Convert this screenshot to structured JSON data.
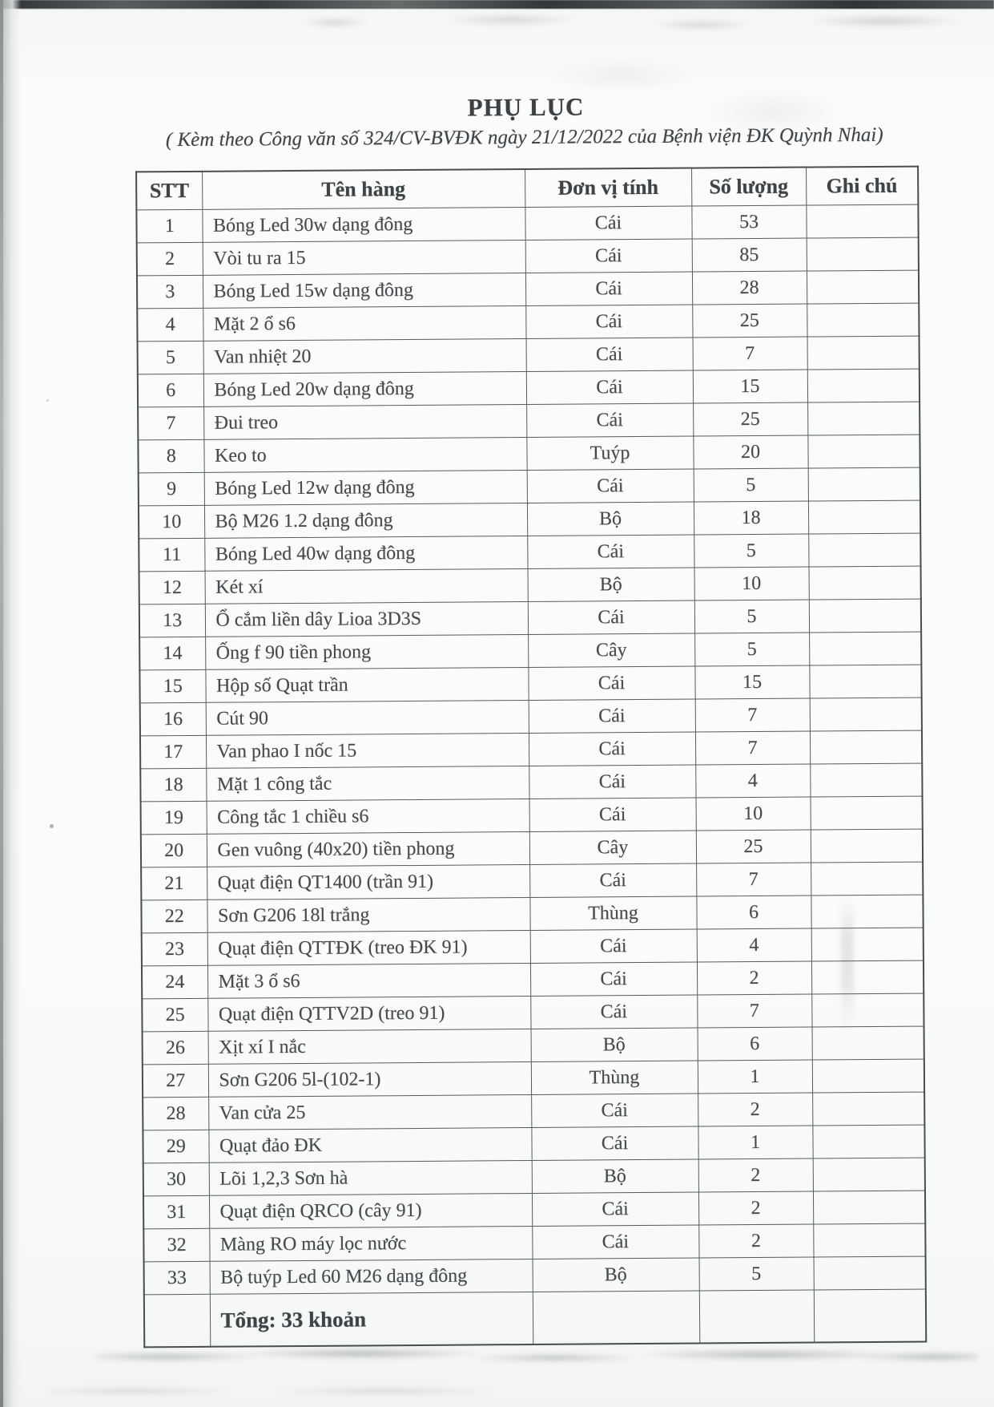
{
  "page": {
    "title": "PHỤ LỤC",
    "subtitle": "( Kèm theo Công văn số 324/CV-BVĐK ngày 21/12/2022 của Bệnh viện ĐK Quỳnh Nhai)"
  },
  "table": {
    "columns": [
      "STT",
      "Tên hàng",
      "Đơn vị tính",
      "Số lượng",
      "Ghi chú"
    ],
    "rows": [
      {
        "stt": "1",
        "ten_hang": "Bóng Led 30w dạng đông",
        "don_vi_tinh": "Cái",
        "so_luong": "53",
        "ghi_chu": ""
      },
      {
        "stt": "2",
        "ten_hang": "Vòi tu ra 15",
        "don_vi_tinh": "Cái",
        "so_luong": "85",
        "ghi_chu": ""
      },
      {
        "stt": "3",
        "ten_hang": "Bóng Led 15w dạng đông",
        "don_vi_tinh": "Cái",
        "so_luong": "28",
        "ghi_chu": ""
      },
      {
        "stt": "4",
        "ten_hang": "Mặt 2 ổ s6",
        "don_vi_tinh": "Cái",
        "so_luong": "25",
        "ghi_chu": ""
      },
      {
        "stt": "5",
        "ten_hang": "Van nhiệt 20",
        "don_vi_tinh": "Cái",
        "so_luong": "7",
        "ghi_chu": ""
      },
      {
        "stt": "6",
        "ten_hang": "Bóng Led 20w dạng đông",
        "don_vi_tinh": "Cái",
        "so_luong": "15",
        "ghi_chu": ""
      },
      {
        "stt": "7",
        "ten_hang": "Đui treo",
        "don_vi_tinh": "Cái",
        "so_luong": "25",
        "ghi_chu": ""
      },
      {
        "stt": "8",
        "ten_hang": "Keo to",
        "don_vi_tinh": "Tuýp",
        "so_luong": "20",
        "ghi_chu": ""
      },
      {
        "stt": "9",
        "ten_hang": "Bóng Led 12w dạng đông",
        "don_vi_tinh": "Cái",
        "so_luong": "5",
        "ghi_chu": ""
      },
      {
        "stt": "10",
        "ten_hang": "Bộ M26 1.2 dạng đông",
        "don_vi_tinh": "Bộ",
        "so_luong": "18",
        "ghi_chu": ""
      },
      {
        "stt": "11",
        "ten_hang": "Bóng Led 40w dạng đông",
        "don_vi_tinh": "Cái",
        "so_luong": "5",
        "ghi_chu": ""
      },
      {
        "stt": "12",
        "ten_hang": "Két xí",
        "don_vi_tinh": "Bộ",
        "so_luong": "10",
        "ghi_chu": ""
      },
      {
        "stt": "13",
        "ten_hang": "Ổ cắm liền dây Lioa 3D3S",
        "don_vi_tinh": "Cái",
        "so_luong": "5",
        "ghi_chu": ""
      },
      {
        "stt": "14",
        "ten_hang": "Ống f 90 tiền phong",
        "don_vi_tinh": "Cây",
        "so_luong": "5",
        "ghi_chu": ""
      },
      {
        "stt": "15",
        "ten_hang": "Hộp số Quạt trần",
        "don_vi_tinh": "Cái",
        "so_luong": "15",
        "ghi_chu": ""
      },
      {
        "stt": "16",
        "ten_hang": "Cút 90",
        "don_vi_tinh": "Cái",
        "so_luong": "7",
        "ghi_chu": ""
      },
      {
        "stt": "17",
        "ten_hang": "Van phao I nốc 15",
        "don_vi_tinh": "Cái",
        "so_luong": "7",
        "ghi_chu": ""
      },
      {
        "stt": "18",
        "ten_hang": "Mặt 1 công tắc",
        "don_vi_tinh": "Cái",
        "so_luong": "4",
        "ghi_chu": ""
      },
      {
        "stt": "19",
        "ten_hang": "Công tắc 1 chiều s6",
        "don_vi_tinh": "Cái",
        "so_luong": "10",
        "ghi_chu": ""
      },
      {
        "stt": "20",
        "ten_hang": "Gen vuông (40x20) tiền phong",
        "don_vi_tinh": "Cây",
        "so_luong": "25",
        "ghi_chu": ""
      },
      {
        "stt": "21",
        "ten_hang": "Quạt điện QT1400 (trần 91)",
        "don_vi_tinh": "Cái",
        "so_luong": "7",
        "ghi_chu": ""
      },
      {
        "stt": "22",
        "ten_hang": "Sơn G206 18l trắng",
        "don_vi_tinh": "Thùng",
        "so_luong": "6",
        "ghi_chu": ""
      },
      {
        "stt": "23",
        "ten_hang": "Quạt điện QTTĐK (treo ĐK 91)",
        "don_vi_tinh": "Cái",
        "so_luong": "4",
        "ghi_chu": ""
      },
      {
        "stt": "24",
        "ten_hang": "Mặt 3 ổ s6",
        "don_vi_tinh": "Cái",
        "so_luong": "2",
        "ghi_chu": ""
      },
      {
        "stt": "25",
        "ten_hang": "Quạt điện QTTV2D (treo 91)",
        "don_vi_tinh": "Cái",
        "so_luong": "7",
        "ghi_chu": ""
      },
      {
        "stt": "26",
        "ten_hang": "Xịt xí I nắc",
        "don_vi_tinh": "Bộ",
        "so_luong": "6",
        "ghi_chu": ""
      },
      {
        "stt": "27",
        "ten_hang": "Sơn G206 5l-(102-1)",
        "don_vi_tinh": "Thùng",
        "so_luong": "1",
        "ghi_chu": ""
      },
      {
        "stt": "28",
        "ten_hang": "Van cửa 25",
        "don_vi_tinh": "Cái",
        "so_luong": "2",
        "ghi_chu": ""
      },
      {
        "stt": "29",
        "ten_hang": "Quạt đảo ĐK",
        "don_vi_tinh": "Cái",
        "so_luong": "1",
        "ghi_chu": ""
      },
      {
        "stt": "30",
        "ten_hang": "Lõi 1,2,3 Sơn hà",
        "don_vi_tinh": "Bộ",
        "so_luong": "2",
        "ghi_chu": ""
      },
      {
        "stt": "31",
        "ten_hang": "Quạt điện QRCO (cây 91)",
        "don_vi_tinh": "Cái",
        "so_luong": "2",
        "ghi_chu": ""
      },
      {
        "stt": "32",
        "ten_hang": "Màng RO máy lọc nước",
        "don_vi_tinh": "Cái",
        "so_luong": "2",
        "ghi_chu": ""
      },
      {
        "stt": "33",
        "ten_hang": "Bộ tuýp Led 60 M26 dạng đông",
        "don_vi_tinh": "Bộ",
        "so_luong": "5",
        "ghi_chu": ""
      }
    ],
    "total_label": "Tổng: 33 khoản"
  },
  "colors": {
    "ink": "#43474b",
    "border": "#565b5e",
    "paper": "#fbfcfa",
    "scanner_bar": "#35383a"
  }
}
